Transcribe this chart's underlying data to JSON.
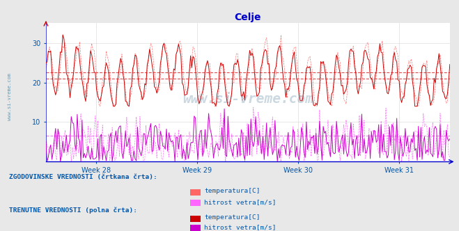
{
  "title": "Celje",
  "title_color": "#0000cc",
  "background_color": "#e8e8e8",
  "plot_bg_color": "#ffffff",
  "x_ticks_labels": [
    "Week 28",
    "Week 29",
    "Week 30",
    "Week 31"
  ],
  "ylim": [
    0,
    35
  ],
  "yticks": [
    10,
    20,
    30
  ],
  "grid_color": "#dddddd",
  "avg_temp_line1": 22.5,
  "avg_temp_line2": 21.0,
  "avg_wind_line": 6.5,
  "temp_color": "#cc0000",
  "wind_color": "#cc00cc",
  "temp_hist_color": "#ff6666",
  "wind_hist_color": "#ff66ff",
  "n_points": 336,
  "legend_text_color": "#0055aa",
  "legend_label1": "ZGODOVINSKE VREDNOSTI (črtkana črta):",
  "legend_label2": "TRENUTNE VREDNOSTI (polna črta):",
  "legend_temp": "temperatura[C]",
  "legend_wind": "hitrost vetra[m/s]",
  "watermark": "www.si-vreme.com",
  "watermark_color": "#336688",
  "axis_color": "#0000cc",
  "tick_color": "#0055aa"
}
